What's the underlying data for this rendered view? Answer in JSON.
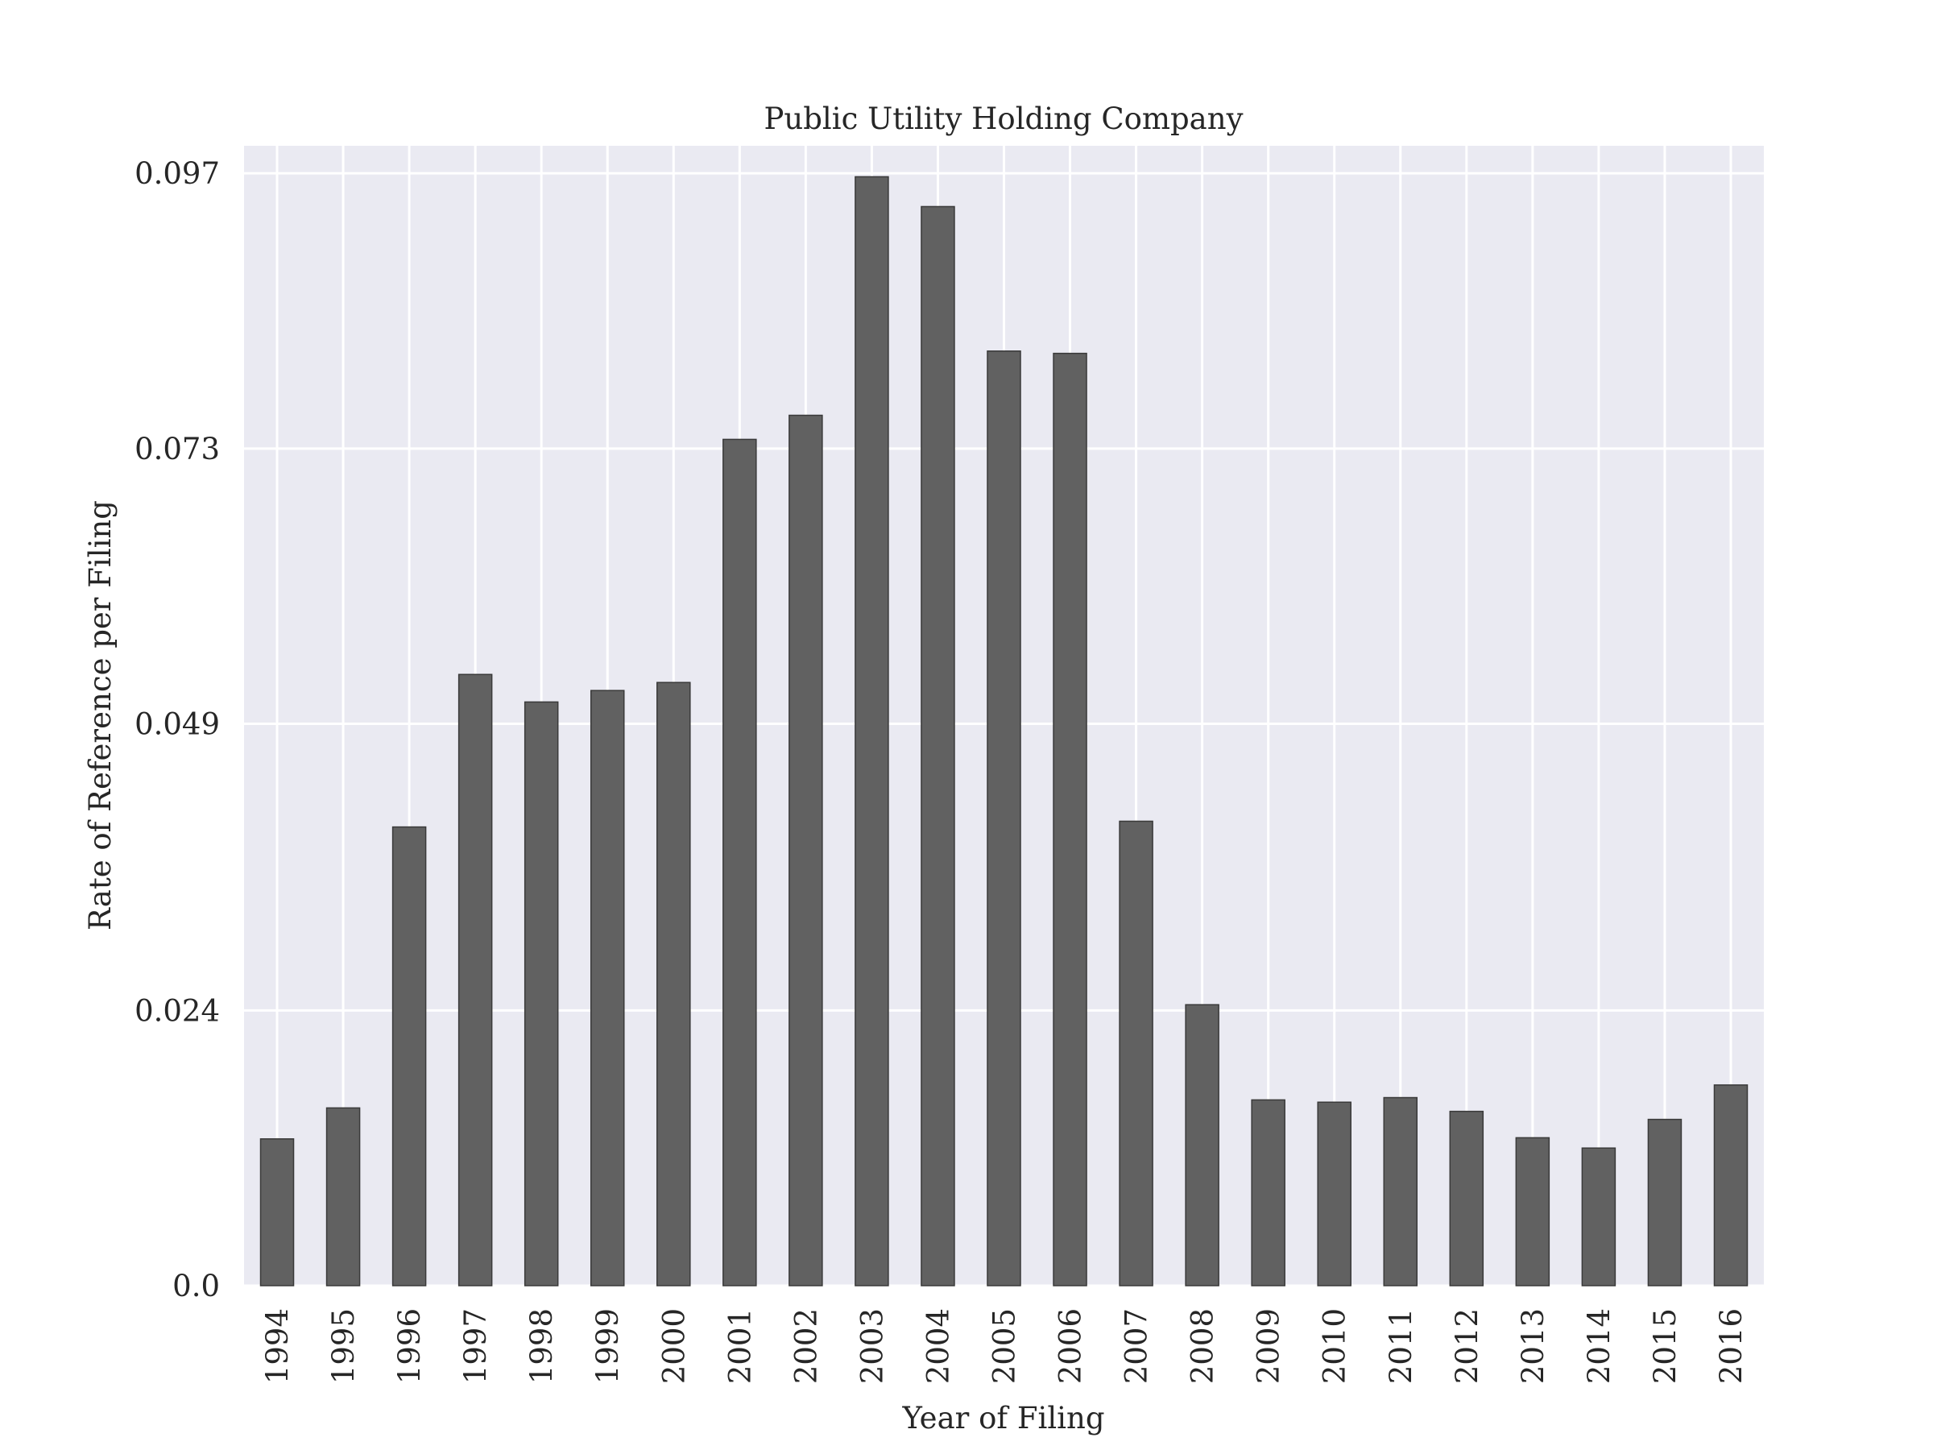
{
  "chart_data": {
    "type": "bar",
    "title": "Public Utility Holding Company",
    "xlabel": "Year of Filing",
    "ylabel": "Rate of Reference per Filing",
    "categories": [
      "1994",
      "1995",
      "1996",
      "1997",
      "1998",
      "1999",
      "2000",
      "2001",
      "2002",
      "2003",
      "2004",
      "2005",
      "2006",
      "2007",
      "2008",
      "2009",
      "2010",
      "2011",
      "2012",
      "2013",
      "2014",
      "2015",
      "2016"
    ],
    "values": [
      0.0128,
      0.0155,
      0.04,
      0.0533,
      0.0509,
      0.0519,
      0.0526,
      0.0738,
      0.0759,
      0.0967,
      0.0941,
      0.0815,
      0.0813,
      0.0405,
      0.0245,
      0.0162,
      0.016,
      0.0164,
      0.0152,
      0.0129,
      0.012,
      0.0145,
      0.0175
    ],
    "yticks": [
      0.0,
      0.024,
      0.049,
      0.073,
      0.097
    ],
    "ytick_labels": [
      "0.0",
      "0.024",
      "0.049",
      "0.073",
      "0.097"
    ],
    "ylim": [
      0,
      0.0994
    ],
    "grid": true,
    "colors": {
      "plot_background": "#eaeaf2",
      "grid": "#ffffff",
      "bar": "#616161",
      "bar_edge": "#3a3a3a"
    }
  }
}
